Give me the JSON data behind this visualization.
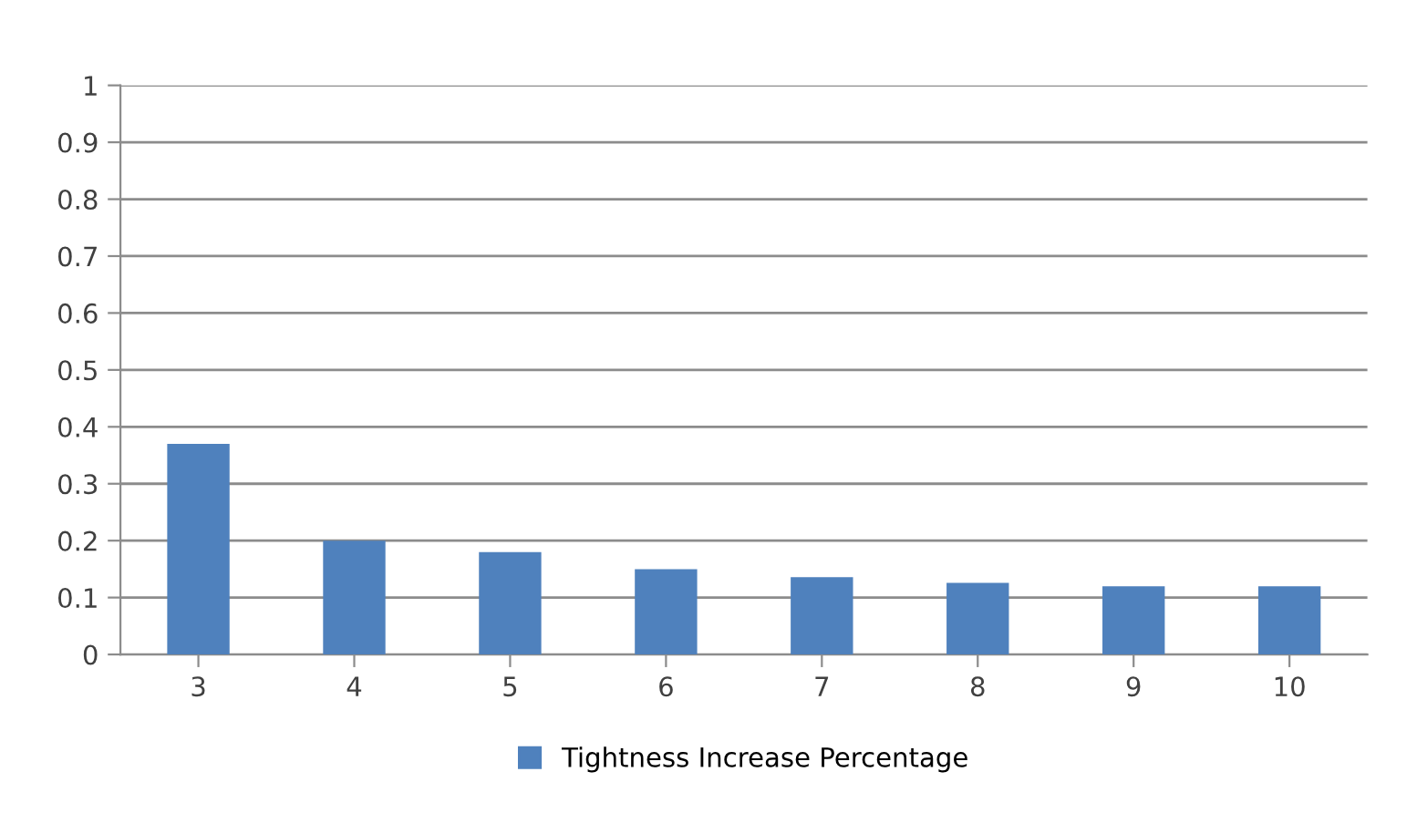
{
  "chart_data": {
    "type": "bar",
    "categories": [
      "3",
      "4",
      "5",
      "6",
      "7",
      "8",
      "9",
      "10"
    ],
    "series": [
      {
        "name": "Tightness Increase Percentage",
        "color": "#4f81bd",
        "values": [
          0.37,
          0.2,
          0.18,
          0.15,
          0.136,
          0.126,
          0.12,
          0.12
        ]
      }
    ],
    "ylim": [
      0,
      1
    ],
    "yticks": [
      0,
      {
        "value": 0.1,
        "label": "0.1"
      },
      {
        "value": 0.2,
        "label": "0.2"
      },
      {
        "value": 0.3,
        "label": "0.3"
      },
      {
        "value": 0.4,
        "label": "0.4"
      },
      {
        "value": 0.5,
        "label": "0.5"
      },
      {
        "value": 0.6,
        "label": "0.6"
      },
      {
        "value": 0.7,
        "label": "0.7"
      },
      {
        "value": 0.8,
        "label": "0.8"
      },
      {
        "value": 0.9,
        "label": "0.9"
      },
      1
    ],
    "grid": "y",
    "legend": "bottom"
  }
}
